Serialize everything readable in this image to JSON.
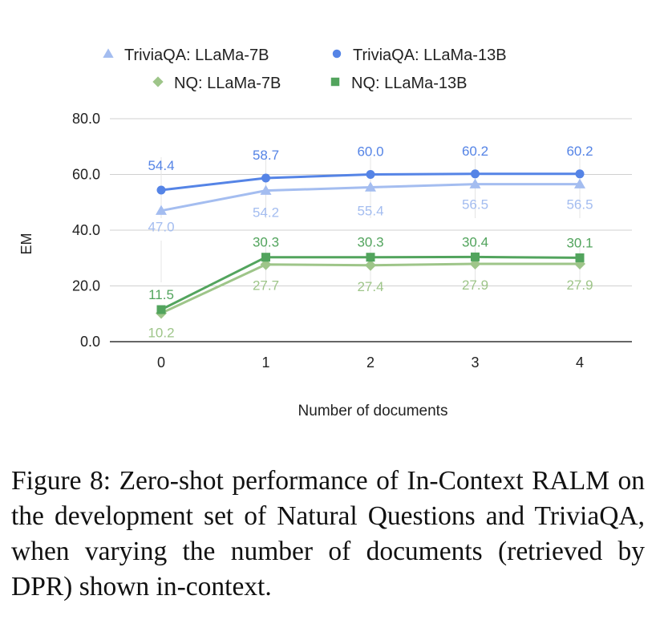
{
  "chart_data": {
    "type": "line",
    "title": "",
    "xlabel": "Number of documents",
    "ylabel": "EM",
    "x": [
      0,
      1,
      2,
      3,
      4
    ],
    "x_tick_labels": [
      "0",
      "1",
      "2",
      "3",
      "4"
    ],
    "ylim": [
      0,
      80
    ],
    "y_ticks": [
      0,
      20,
      40,
      60,
      80
    ],
    "y_tick_labels": [
      "0.0",
      "20.0",
      "40.0",
      "60.0",
      "80.0"
    ],
    "grid": true,
    "legend_position": "top-center",
    "series": [
      {
        "name": "TriviaQA: LLaMa-7B",
        "marker": "triangle",
        "color": "#a4bdf0",
        "label_position": "below",
        "values": [
          47.0,
          54.2,
          55.4,
          56.5,
          56.5
        ],
        "labels": [
          "47.0",
          "54.2",
          "55.4",
          "56.5",
          "56.5"
        ]
      },
      {
        "name": "TriviaQA: LLaMa-13B",
        "marker": "circle",
        "color": "#5584e6",
        "label_position": "above",
        "values": [
          54.4,
          58.7,
          60.0,
          60.2,
          60.2
        ],
        "labels": [
          "54.4",
          "58.7",
          "60.0",
          "60.2",
          "60.2"
        ]
      },
      {
        "name": "NQ: LLaMa-7B",
        "marker": "diamond",
        "color": "#9ec589",
        "label_position": "below",
        "values": [
          10.2,
          27.7,
          27.4,
          27.9,
          27.9
        ],
        "labels": [
          "10.2",
          "27.7",
          "27.4",
          "27.9",
          "27.9"
        ]
      },
      {
        "name": "NQ: LLaMa-13B",
        "marker": "square",
        "color": "#52a45d",
        "label_position": "above",
        "values": [
          11.5,
          30.3,
          30.3,
          30.4,
          30.1
        ],
        "labels": [
          "11.5",
          "30.3",
          "30.3",
          "30.4",
          "30.1"
        ]
      }
    ]
  },
  "caption": "Figure 8: Zero-shot performance of In-Context RALM on the development set of Natural Questions and TriviaQA, when varying the number of documents (retrieved by DPR) shown in-context."
}
